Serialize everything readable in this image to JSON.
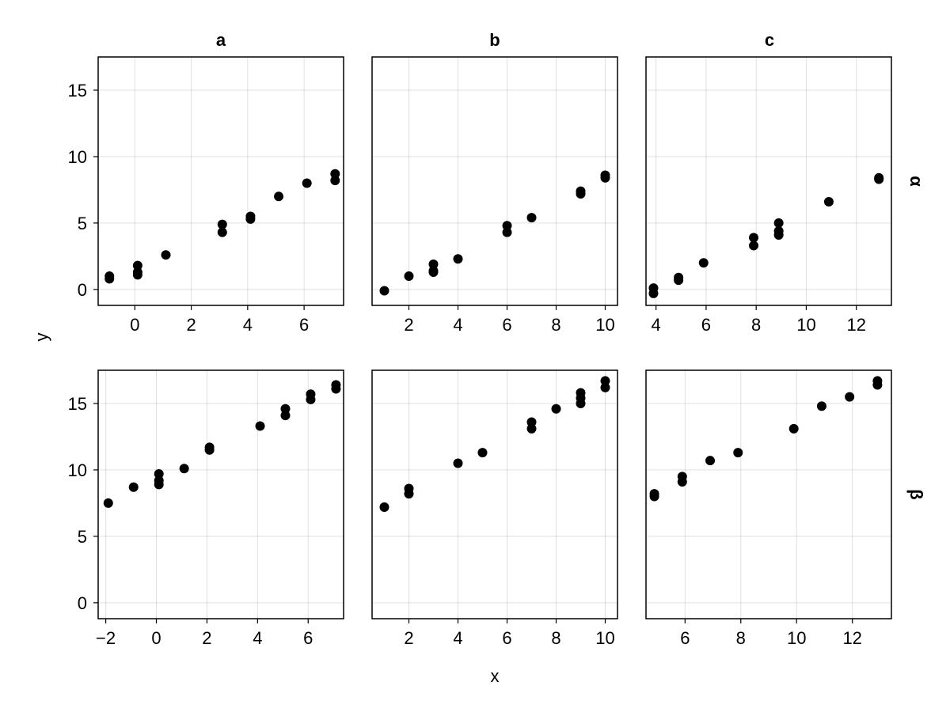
{
  "figure": {
    "xlabel": "x",
    "ylabel": "y",
    "column_titles": [
      "a",
      "b",
      "c"
    ],
    "row_titles": [
      "α",
      "β"
    ]
  },
  "chart_data": [
    {
      "type": "scatter",
      "row": "α",
      "column": "a",
      "xlim": [
        -1.3,
        7.4
      ],
      "ylim": [
        -1.2,
        17.5
      ],
      "xticks": [
        0,
        2,
        4,
        6
      ],
      "yticks": [
        0,
        5,
        10,
        15
      ],
      "grid": true,
      "marker_color": "#000000",
      "x": [
        -0.9,
        -0.9,
        0.1,
        0.1,
        0.1,
        1.1,
        3.1,
        3.1,
        4.1,
        4.1,
        5.1,
        6.1,
        7.1,
        7.1
      ],
      "y": [
        0.8,
        1.0,
        1.1,
        1.3,
        1.8,
        2.6,
        4.9,
        4.3,
        5.3,
        5.5,
        7.0,
        8.0,
        8.2,
        8.7
      ]
    },
    {
      "type": "scatter",
      "row": "α",
      "column": "b",
      "xlim": [
        0.5,
        10.5
      ],
      "ylim": [
        -1.2,
        17.5
      ],
      "xticks": [
        2,
        4,
        6,
        8,
        10
      ],
      "yticks": [
        0,
        5,
        10,
        15
      ],
      "grid": true,
      "marker_color": "#000000",
      "x": [
        1,
        2,
        3,
        3,
        3,
        4,
        6,
        6,
        7,
        9,
        9,
        10,
        10
      ],
      "y": [
        -0.1,
        1.0,
        1.3,
        1.4,
        1.9,
        2.3,
        4.3,
        4.8,
        5.4,
        7.2,
        7.4,
        8.4,
        8.6
      ]
    },
    {
      "type": "scatter",
      "row": "α",
      "column": "c",
      "xlim": [
        3.6,
        13.4
      ],
      "ylim": [
        -1.2,
        17.5
      ],
      "xticks": [
        4,
        6,
        8,
        10,
        12
      ],
      "yticks": [
        0,
        5,
        10,
        15
      ],
      "grid": true,
      "marker_color": "#000000",
      "x": [
        3.9,
        3.9,
        4.9,
        4.9,
        5.9,
        7.9,
        7.9,
        8.9,
        8.9,
        8.9,
        10.9,
        12.9,
        12.9
      ],
      "y": [
        -0.3,
        0.1,
        0.7,
        0.9,
        2.0,
        3.3,
        3.9,
        4.1,
        4.4,
        5.0,
        6.6,
        8.3,
        8.4
      ]
    },
    {
      "type": "scatter",
      "row": "β",
      "column": "a",
      "xlim": [
        -2.3,
        7.4
      ],
      "ylim": [
        -1.2,
        17.5
      ],
      "xticks": [
        -2,
        0,
        2,
        4,
        6
      ],
      "yticks": [
        0,
        5,
        10,
        15
      ],
      "grid": true,
      "marker_color": "#000000",
      "x": [
        -1.9,
        -0.9,
        0.1,
        0.1,
        0.1,
        1.1,
        2.1,
        2.1,
        4.1,
        5.1,
        5.1,
        6.1,
        6.1,
        7.1,
        7.1
      ],
      "y": [
        7.5,
        8.7,
        8.9,
        9.2,
        9.7,
        10.1,
        11.5,
        11.7,
        13.3,
        14.1,
        14.6,
        15.3,
        15.7,
        16.1,
        16.4
      ]
    },
    {
      "type": "scatter",
      "row": "β",
      "column": "b",
      "xlim": [
        0.5,
        10.5
      ],
      "ylim": [
        -1.2,
        17.5
      ],
      "xticks": [
        2,
        4,
        6,
        8,
        10
      ],
      "yticks": [
        0,
        5,
        10,
        15
      ],
      "grid": true,
      "marker_color": "#000000",
      "x": [
        1,
        2,
        2,
        4,
        5,
        7,
        7,
        8,
        9,
        9,
        9,
        10,
        10
      ],
      "y": [
        7.2,
        8.2,
        8.6,
        10.5,
        11.3,
        13.1,
        13.6,
        14.6,
        15.0,
        15.4,
        15.8,
        16.2,
        16.7
      ]
    },
    {
      "type": "scatter",
      "row": "β",
      "column": "c",
      "xlim": [
        4.6,
        13.4
      ],
      "ylim": [
        -1.2,
        17.5
      ],
      "xticks": [
        6,
        8,
        10,
        12
      ],
      "yticks": [
        0,
        5,
        10,
        15
      ],
      "grid": true,
      "marker_color": "#000000",
      "x": [
        4.9,
        4.9,
        5.9,
        5.9,
        6.9,
        7.9,
        9.9,
        10.9,
        11.9,
        12.9,
        12.9
      ],
      "y": [
        8.0,
        8.2,
        9.1,
        9.5,
        10.7,
        11.3,
        13.1,
        14.8,
        15.5,
        16.4,
        16.7
      ]
    }
  ]
}
